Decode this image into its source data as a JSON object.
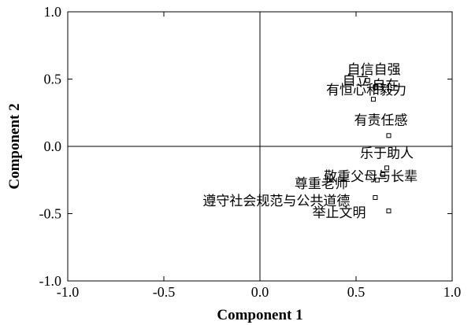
{
  "chart_data": {
    "type": "scatter",
    "title": "",
    "xlabel": "Component 1",
    "ylabel": "Component 2",
    "xlim": [
      -1.0,
      1.0
    ],
    "ylim": [
      -1.0,
      1.0
    ],
    "x_ticks": [
      "-1.0",
      "-0.5",
      "0.0",
      "0.5",
      "1.0"
    ],
    "y_ticks": [
      "1.0",
      "0.5",
      "0.0",
      "-0.5",
      "-1.0"
    ],
    "grid": false,
    "reference_lines": {
      "x": 0.0,
      "y": 0.0
    },
    "points": [
      {
        "label": "自信自强",
        "x": 0.56,
        "y": 0.49
      },
      {
        "label": "自立",
        "x": 0.56,
        "y": 0.49
      },
      {
        "label": "自在",
        "x": 0.6,
        "y": 0.44
      },
      {
        "label": "有恒心和毅力",
        "x": 0.59,
        "y": 0.35
      },
      {
        "label": "有责任感",
        "x": 0.67,
        "y": 0.08
      },
      {
        "label": "乐于助人",
        "x": 0.66,
        "y": -0.16
      },
      {
        "label": "敬重父母与长辈",
        "x": 0.64,
        "y": -0.21
      },
      {
        "label": "尊重老师",
        "x": 0.61,
        "y": -0.25
      },
      {
        "label": "遵守社会规范与公共道德",
        "x": 0.6,
        "y": -0.38
      },
      {
        "label": "举止文明",
        "x": 0.67,
        "y": -0.48
      }
    ]
  }
}
